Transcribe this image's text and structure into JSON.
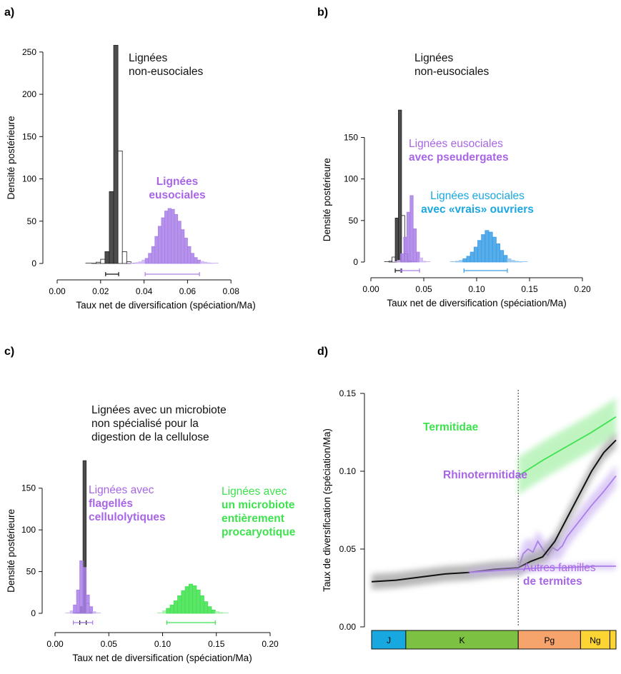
{
  "colors": {
    "grey": "#4d4d4d",
    "grey_outline": "#222222",
    "purple": "#a97fe8",
    "purple_light": "#cdb6f3",
    "blue": "#3a9ee6",
    "blue_light": "#8fc6f0",
    "green": "#3ee24e",
    "green_light": "#a5f0a8",
    "text_purple": "#a866e6",
    "text_blue": "#1aa7e0",
    "text_green": "#3ee24e",
    "black": "#111111",
    "era_J": "#17a8e0",
    "era_K": "#7cc142",
    "era_Pg": "#f6a46b",
    "era_Ng": "#fcd535"
  },
  "chart_data": [
    {
      "panel": "a)",
      "type": "bar",
      "ylabel": "Densité postérieure",
      "xlabel": "Taux  net de diversification (spéciation/Ma)",
      "xlim": [
        0,
        0.1
      ],
      "ylim": [
        0,
        260
      ],
      "xticks": [
        "0.00",
        "0.02",
        "0.04",
        "0.06",
        "0.08"
      ],
      "xtick_values": [
        0,
        0.02,
        0.04,
        0.06,
        0.08
      ],
      "yticks": [
        "0",
        "50",
        "100",
        "150",
        "200",
        "250"
      ],
      "ytick_values": [
        0,
        50,
        100,
        150,
        200,
        250
      ],
      "series": [
        {
          "name": "Lignées\nnon-eusociales",
          "color_key": "grey",
          "bin_width": 0.002,
          "bins": [
            [
              0.016,
              0.3
            ],
            [
              0.018,
              1.5
            ],
            [
              0.02,
              5
            ],
            [
              0.022,
              14
            ],
            [
              0.024,
              85
            ],
            [
              0.026,
              258
            ],
            [
              0.028,
              133
            ],
            [
              0.03,
              14
            ],
            [
              0.032,
              2
            ]
          ],
          "hpd": [
            0.0223,
            0.0283
          ]
        },
        {
          "name": "Lignées\neusociales",
          "color_key": "purple",
          "bin_width": 0.0015,
          "bins": [
            [
              0.0345,
              0.3
            ],
            [
              0.036,
              1
            ],
            [
              0.0375,
              2
            ],
            [
              0.039,
              4
            ],
            [
              0.0405,
              6
            ],
            [
              0.042,
              12
            ],
            [
              0.0435,
              20
            ],
            [
              0.045,
              32
            ],
            [
              0.0465,
              44
            ],
            [
              0.048,
              54
            ],
            [
              0.0495,
              62
            ],
            [
              0.051,
              65
            ],
            [
              0.0525,
              64
            ],
            [
              0.054,
              58
            ],
            [
              0.0555,
              50
            ],
            [
              0.057,
              40
            ],
            [
              0.0585,
              30
            ],
            [
              0.06,
              20
            ],
            [
              0.0615,
              12
            ],
            [
              0.063,
              7
            ],
            [
              0.0645,
              4
            ],
            [
              0.066,
              2.5
            ],
            [
              0.0675,
              1.5
            ],
            [
              0.069,
              0.8
            ],
            [
              0.0705,
              0.4
            ]
          ],
          "hpd": [
            0.0405,
            0.0655
          ]
        }
      ]
    },
    {
      "panel": "b)",
      "type": "bar",
      "ylabel": "Densité postérieure",
      "xlabel": "Taux  net de diversification (spéciation/Ma)",
      "xlim": [
        0,
        0.2
      ],
      "ylim": [
        0,
        190
      ],
      "xticks": [
        "0.00",
        "0.05",
        "0.10",
        "0.15",
        "0.20"
      ],
      "xtick_values": [
        0,
        0.05,
        0.1,
        0.15,
        0.2
      ],
      "yticks": [
        "0",
        "50",
        "100",
        "150"
      ],
      "ytick_values": [
        0,
        50,
        100,
        150
      ],
      "series": [
        {
          "name": "Lignées\nnon-eusociales",
          "color_key": "grey",
          "bin_width": 0.003,
          "bins": [
            [
              0.017,
              1
            ],
            [
              0.02,
              6
            ],
            [
              0.023,
              53
            ],
            [
              0.026,
              183
            ],
            [
              0.029,
              56
            ],
            [
              0.032,
              10
            ],
            [
              0.035,
              1
            ]
          ],
          "hpd": [
            0.023,
            0.029
          ]
        },
        {
          "name": "Lignées eusociales\navec pseudergates",
          "color_key": "purple",
          "bin_width": 0.003,
          "bins": [
            [
              0.025,
              2
            ],
            [
              0.028,
              10
            ],
            [
              0.031,
              30
            ],
            [
              0.034,
              60
            ],
            [
              0.037,
              80
            ],
            [
              0.04,
              40
            ],
            [
              0.043,
              12
            ],
            [
              0.046,
              5
            ],
            [
              0.049,
              1
            ]
          ],
          "hpd": [
            0.028,
            0.046
          ]
        },
        {
          "name": "Lignées eusociales\navec «vrais» ouvriers",
          "color_key": "blue",
          "bin_width": 0.0035,
          "bins": [
            [
              0.08,
              1
            ],
            [
              0.0835,
              2
            ],
            [
              0.087,
              4
            ],
            [
              0.0905,
              7
            ],
            [
              0.094,
              12
            ],
            [
              0.0975,
              18
            ],
            [
              0.101,
              26
            ],
            [
              0.1045,
              33
            ],
            [
              0.108,
              38
            ],
            [
              0.1115,
              36
            ],
            [
              0.115,
              30
            ],
            [
              0.1185,
              22
            ],
            [
              0.122,
              14
            ],
            [
              0.1255,
              8
            ],
            [
              0.129,
              4
            ],
            [
              0.1325,
              2
            ],
            [
              0.136,
              1
            ],
            [
              0.1395,
              0.5
            ]
          ],
          "hpd": [
            0.088,
            0.129
          ]
        }
      ]
    },
    {
      "panel": "c)",
      "type": "bar",
      "ylabel": "Densité postérieure",
      "xlabel": "Taux  net de diversification (spéciation/Ma)",
      "xlim": [
        0,
        0.2
      ],
      "ylim": [
        0,
        190
      ],
      "xticks": [
        "0.00",
        "0.05",
        "0.10",
        "0.15",
        "0.20"
      ],
      "xtick_values": [
        0,
        0.05,
        0.1,
        0.15,
        0.2
      ],
      "yticks": [
        "0",
        "50",
        "100",
        "150"
      ],
      "ytick_values": [
        0,
        50,
        100,
        150
      ],
      "series": [
        {
          "name": "Lignées avec un microbiote\nnon spécialisé pour la\ndigestion de la cellulose",
          "color_key": "grey",
          "bin_width": 0.003,
          "bins": [
            [
              0.02,
              1
            ],
            [
              0.023,
              8
            ],
            [
              0.026,
              183
            ],
            [
              0.029,
              12
            ],
            [
              0.032,
              1
            ]
          ],
          "hpd": [
            0.023,
            0.029
          ]
        },
        {
          "name": "Lignées avec\nflagellés\ncellulolytiques",
          "color_key": "purple",
          "bin_width": 0.003,
          "bins": [
            [
              0.014,
              3
            ],
            [
              0.017,
              10
            ],
            [
              0.02,
              28
            ],
            [
              0.023,
              63
            ],
            [
              0.026,
              55
            ],
            [
              0.029,
              22
            ],
            [
              0.032,
              8
            ],
            [
              0.035,
              2
            ]
          ],
          "hpd": [
            0.017,
            0.035
          ]
        },
        {
          "name": "Lignées avec\nun microbiote\nentièrement\nprocaryotique",
          "color_key": "green",
          "bin_width": 0.0035,
          "bins": [
            [
              0.1,
              3
            ],
            [
              0.1035,
              6
            ],
            [
              0.107,
              10
            ],
            [
              0.1105,
              15
            ],
            [
              0.114,
              21
            ],
            [
              0.1175,
              27
            ],
            [
              0.121,
              32
            ],
            [
              0.1245,
              35
            ],
            [
              0.128,
              33
            ],
            [
              0.1315,
              28
            ],
            [
              0.135,
              21
            ],
            [
              0.1385,
              14
            ],
            [
              0.142,
              8
            ],
            [
              0.1455,
              4
            ],
            [
              0.149,
              2
            ],
            [
              0.1525,
              1
            ]
          ],
          "hpd": [
            0.104,
            0.149
          ]
        }
      ]
    },
    {
      "panel": "d)",
      "type": "line",
      "ylabel": "Taux de diversification (spéciation/Ma)",
      "ylim": [
        0,
        0.15
      ],
      "yticks": [
        "0.00",
        "0.05",
        "0.10",
        "0.15"
      ],
      "ytick_values": [
        0,
        0.05,
        0.1,
        0.15
      ],
      "xlim": [
        0,
        1
      ],
      "split_x": 0.6,
      "periods": [
        {
          "label": "J",
          "start": 0,
          "end": 0.14,
          "color_key": "era_J"
        },
        {
          "label": "K",
          "start": 0.14,
          "end": 0.6,
          "color_key": "era_K"
        },
        {
          "label": "Pg",
          "start": 0.6,
          "end": 0.855,
          "color_key": "era_Pg"
        },
        {
          "label": "Ng",
          "start": 0.855,
          "end": 0.975,
          "color_key": "era_Ng"
        },
        {
          "label": "",
          "start": 0.975,
          "end": 1,
          "color_key": "era_Ng"
        }
      ],
      "series": [
        {
          "name": "Termitidae",
          "color_key": "green",
          "band": 0.012,
          "x": [
            0.6,
            0.7,
            0.8,
            0.9,
            1.0
          ],
          "y": [
            0.097,
            0.107,
            0.116,
            0.125,
            0.135
          ]
        },
        {
          "name": "Rhinotermitidae",
          "color_key": "purple",
          "band": 0.007,
          "x": [
            0.6,
            0.62,
            0.64,
            0.66,
            0.68,
            0.7,
            0.72,
            0.74,
            0.76,
            0.78,
            0.8,
            0.85,
            0.9,
            0.95,
            1.0
          ],
          "y": [
            0.037,
            0.047,
            0.05,
            0.048,
            0.055,
            0.05,
            0.046,
            0.051,
            0.049,
            0.052,
            0.058,
            0.068,
            0.078,
            0.087,
            0.097
          ]
        },
        {
          "name": "",
          "color_key": "black",
          "band": 0.005,
          "x": [
            0.0,
            0.1,
            0.2,
            0.3,
            0.4,
            0.5,
            0.6,
            0.65,
            0.7,
            0.75,
            0.8,
            0.85,
            0.9,
            0.95,
            1.0
          ],
          "y": [
            0.029,
            0.03,
            0.032,
            0.034,
            0.035,
            0.037,
            0.038,
            0.042,
            0.045,
            0.055,
            0.07,
            0.085,
            0.1,
            0.112,
            0.12
          ]
        },
        {
          "name": "Autres familles\nde termites",
          "color_key": "purple",
          "band": 0.002,
          "x": [
            0.4,
            0.5,
            0.6,
            0.7,
            0.8,
            0.9,
            1.0
          ],
          "y": [
            0.035,
            0.036,
            0.037,
            0.038,
            0.038,
            0.039,
            0.039
          ]
        }
      ]
    }
  ]
}
